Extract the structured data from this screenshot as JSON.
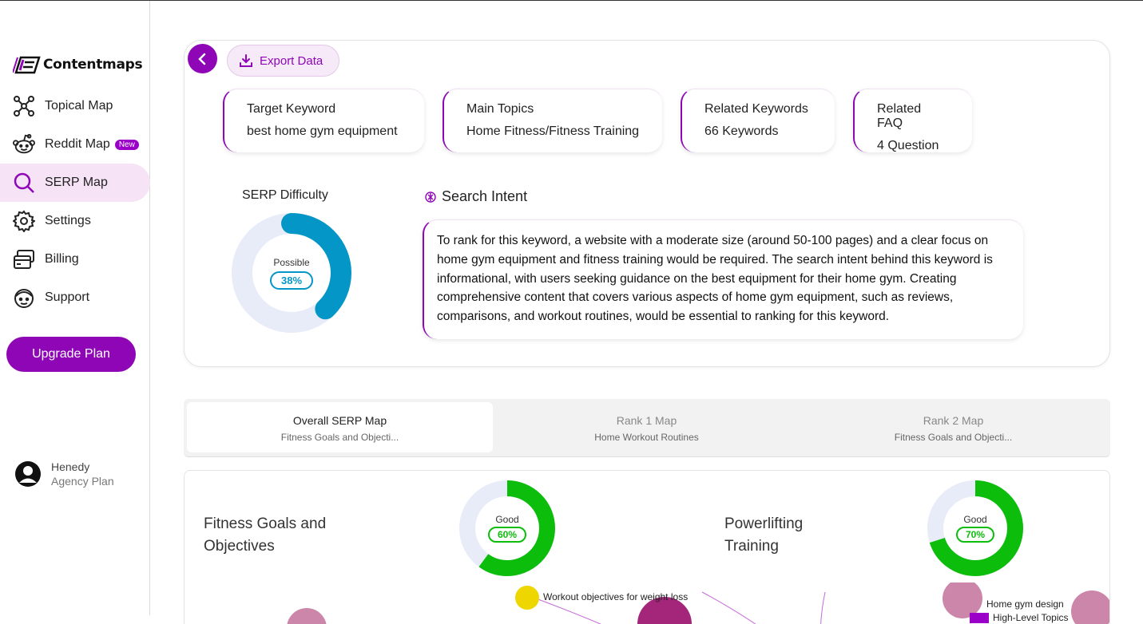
{
  "brand": {
    "name": "Contentmaps"
  },
  "sidebar": {
    "items": [
      {
        "label": "Topical Map",
        "icon": "topical-map-icon"
      },
      {
        "label": "Reddit Map",
        "icon": "reddit-icon",
        "badge": "New"
      },
      {
        "label": "SERP Map",
        "icon": "search-icon",
        "active": true
      },
      {
        "label": "Settings",
        "icon": "gear-icon"
      },
      {
        "label": "Billing",
        "icon": "billing-icon"
      },
      {
        "label": "Support",
        "icon": "support-icon"
      }
    ],
    "upgrade_label": "Upgrade Plan",
    "user": {
      "name": "Henedy",
      "plan": "Agency Plan"
    }
  },
  "toolbar": {
    "export_label": "Export Data"
  },
  "stats": [
    {
      "label": "Target Keyword",
      "value": "best home gym equipment"
    },
    {
      "label": "Main Topics",
      "value": "Home Fitness/Fitness Training"
    },
    {
      "label": "Related Keywords",
      "value": "66 Keywords"
    },
    {
      "label": "Related FAQ",
      "value": "4 Question"
    }
  ],
  "serp_difficulty": {
    "title": "SERP Difficulty",
    "status": "Possible",
    "percent_text": "38%",
    "percent": 38,
    "color": "#0596c8",
    "track": "#e8ebf8"
  },
  "search_intent": {
    "title": "Search Intent",
    "text": "To rank for this keyword, a website with a moderate size (around 50-100 pages) and a clear focus on home gym equipment and fitness training would be required. The search intent behind this keyword is informational, with users seeking guidance on the best equipment for their home gym. Creating comprehensive content that covers various aspects of home gym equipment, such as reviews, comparisons, and workout routines, would be essential to ranking for this keyword."
  },
  "tabs": [
    {
      "title": "Overall SERP Map",
      "subtitle": "Fitness Goals and Objecti...",
      "active": true
    },
    {
      "title": "Rank 1 Map",
      "subtitle": "Home Workout Routines"
    },
    {
      "title": "Rank 2 Map",
      "subtitle": "Fitness Goals and Objecti..."
    }
  ],
  "clusters": [
    {
      "title_line1": "Fitness Goals and",
      "title_line2": "Objectives",
      "status": "Good",
      "percent_text": "60%",
      "percent": 60
    },
    {
      "title_line1": "Powerlifting",
      "title_line2": "Training",
      "status": "Good",
      "percent_text": "70%",
      "percent": 70
    }
  ],
  "cluster_colors": {
    "fill": "#0cbd0c",
    "track": "#e8ebf8"
  },
  "map_labels": {
    "workout_objectives": "Workout objectives for weight loss",
    "home_gym_design": "Home gym design",
    "legend_high_level": "High-Level Topics"
  },
  "colors": {
    "accent": "#8e06b6",
    "accent_light": "#f6e4f6"
  }
}
